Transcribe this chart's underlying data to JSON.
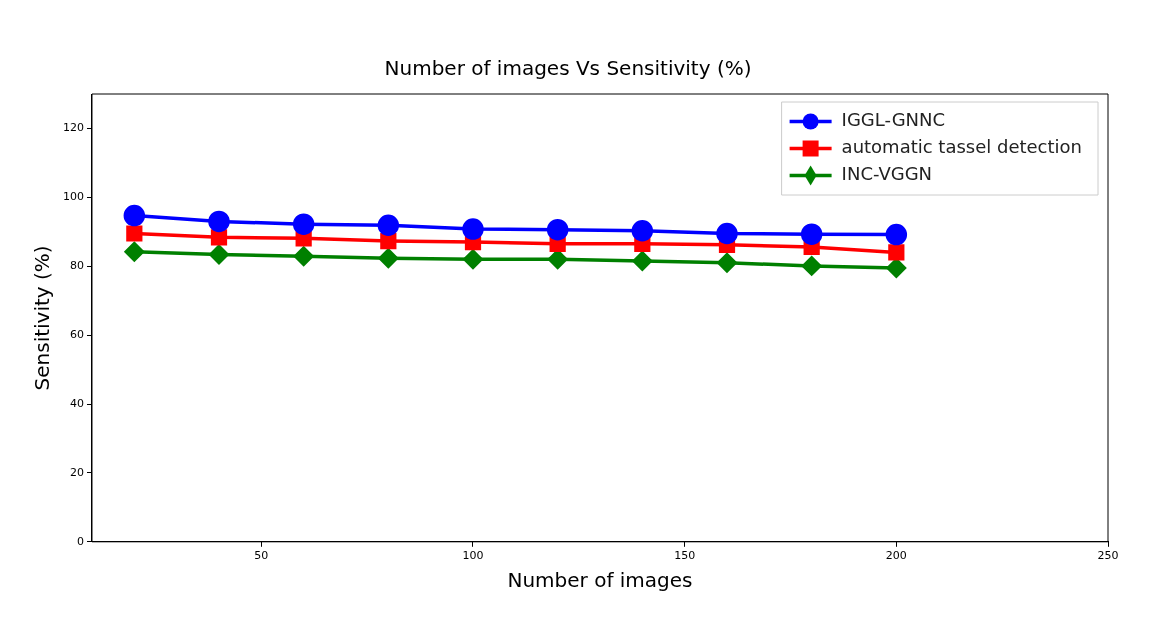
{
  "chart_data": {
    "type": "line",
    "title": "Number of images Vs Sensitivity (%)",
    "xlabel": "Number of images",
    "ylabel": "Sensitivity (%)",
    "x": [
      20,
      40,
      60,
      80,
      100,
      120,
      140,
      160,
      180,
      200
    ],
    "series": [
      {
        "name": "IGGL-GNNC",
        "color": "#0000ff",
        "marker": "circle",
        "values": [
          94.7,
          93.0,
          92.2,
          91.9,
          90.8,
          90.6,
          90.3,
          89.5,
          89.3,
          89.2
        ]
      },
      {
        "name": "automatic tassel detection",
        "color": "#ff0000",
        "marker": "square",
        "values": [
          89.5,
          88.4,
          88.1,
          87.3,
          87.0,
          86.5,
          86.5,
          86.2,
          85.6,
          84.0
        ]
      },
      {
        "name": "INC-VGGN",
        "color": "#008000",
        "marker": "diamond",
        "values": [
          84.2,
          83.4,
          82.9,
          82.3,
          82.0,
          82.0,
          81.5,
          81.0,
          80.1,
          79.5
        ]
      }
    ],
    "xlim": [
      10,
      250
    ],
    "xticks": [
      50,
      100,
      150,
      200,
      250
    ],
    "ylim": [
      0,
      130
    ],
    "yticks": [
      0,
      20,
      40,
      60,
      80,
      100,
      120
    ],
    "grid": false,
    "legend": "top right",
    "line_style": "solid"
  }
}
